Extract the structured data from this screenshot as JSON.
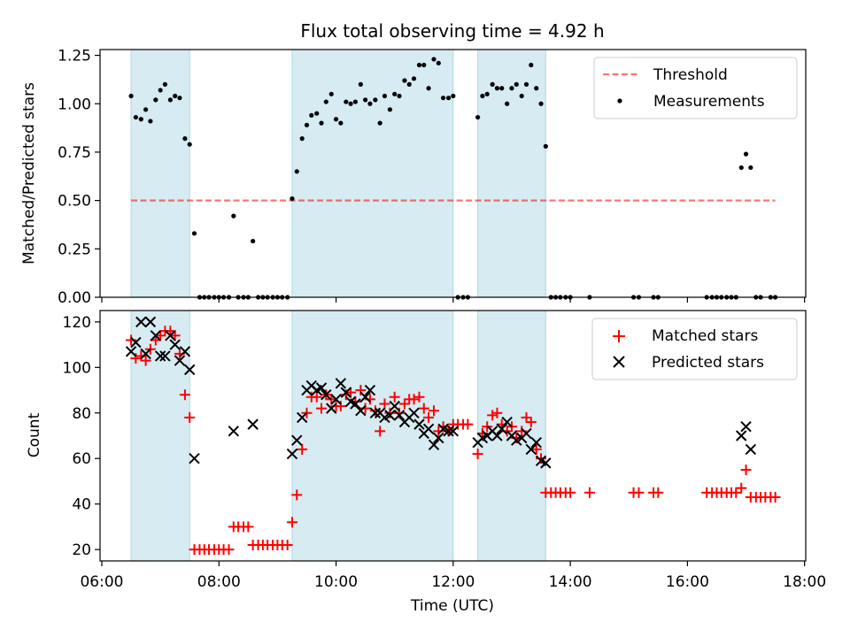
{
  "chart_data": {
    "title": "Flux total observing time = 4.92 h",
    "xlabel": "Time (UTC)",
    "x_ticks": [
      "06:00",
      "08:00",
      "10:00",
      "12:00",
      "14:00",
      "16:00",
      "18:00"
    ],
    "x_tick_hours": [
      6,
      8,
      10,
      12,
      14,
      16,
      18
    ],
    "xlim": [
      5.97,
      18.02
    ],
    "shaded_intervals": [
      [
        6.5,
        7.5
      ],
      [
        9.25,
        12.0
      ],
      [
        12.42,
        13.58
      ]
    ],
    "shade_color": "#add8e6",
    "top": {
      "type": "scatter",
      "ylabel": "Matched/Predicted stars",
      "ylim": [
        0,
        1.28
      ],
      "y_ticks": [
        "0.00",
        "0.25",
        "0.50",
        "0.75",
        "1.00",
        "1.25"
      ],
      "y_tick_values": [
        0,
        0.25,
        0.5,
        0.75,
        1.0,
        1.25
      ],
      "threshold": {
        "name": "Threshold",
        "value": 0.5,
        "x_range": [
          6.5,
          17.5
        ],
        "color": "#ff0000"
      },
      "series_name": "Measurements",
      "points": [
        [
          6.5,
          1.04
        ],
        [
          6.58,
          0.93
        ],
        [
          6.67,
          0.92
        ],
        [
          6.75,
          0.97
        ],
        [
          6.83,
          0.91
        ],
        [
          6.92,
          1.02
        ],
        [
          7.0,
          1.07
        ],
        [
          7.08,
          1.1
        ],
        [
          7.17,
          1.02
        ],
        [
          7.25,
          1.04
        ],
        [
          7.33,
          1.03
        ],
        [
          7.42,
          0.82
        ],
        [
          7.5,
          0.79
        ],
        [
          7.58,
          0.33
        ],
        [
          7.67,
          0.0
        ],
        [
          7.75,
          0.0
        ],
        [
          7.83,
          0.0
        ],
        [
          7.92,
          0.0
        ],
        [
          8.0,
          0.0
        ],
        [
          8.08,
          0.0
        ],
        [
          8.17,
          0.0
        ],
        [
          8.25,
          0.42
        ],
        [
          8.33,
          0.0
        ],
        [
          8.42,
          0.0
        ],
        [
          8.5,
          0.0
        ],
        [
          8.58,
          0.29
        ],
        [
          8.67,
          0.0
        ],
        [
          8.75,
          0.0
        ],
        [
          8.83,
          0.0
        ],
        [
          8.92,
          0.0
        ],
        [
          9.0,
          0.0
        ],
        [
          9.08,
          0.0
        ],
        [
          9.17,
          0.0
        ],
        [
          9.25,
          0.51
        ],
        [
          9.33,
          0.65
        ],
        [
          9.42,
          0.82
        ],
        [
          9.5,
          0.89
        ],
        [
          9.58,
          0.94
        ],
        [
          9.67,
          0.95
        ],
        [
          9.75,
          0.9
        ],
        [
          9.83,
          1.01
        ],
        [
          9.92,
          1.05
        ],
        [
          10.0,
          0.92
        ],
        [
          10.08,
          0.9
        ],
        [
          10.17,
          1.01
        ],
        [
          10.25,
          1.0
        ],
        [
          10.33,
          1.01
        ],
        [
          10.42,
          1.1
        ],
        [
          10.5,
          1.02
        ],
        [
          10.58,
          1.0
        ],
        [
          10.67,
          1.02
        ],
        [
          10.75,
          0.9
        ],
        [
          10.83,
          1.04
        ],
        [
          10.92,
          0.97
        ],
        [
          11.0,
          1.05
        ],
        [
          11.08,
          1.04
        ],
        [
          11.17,
          1.12
        ],
        [
          11.25,
          1.1
        ],
        [
          11.33,
          1.13
        ],
        [
          11.42,
          1.2
        ],
        [
          11.5,
          1.2
        ],
        [
          11.58,
          1.08
        ],
        [
          11.67,
          1.23
        ],
        [
          11.75,
          1.21
        ],
        [
          11.83,
          1.03
        ],
        [
          11.92,
          1.03
        ],
        [
          12.0,
          1.04
        ],
        [
          12.08,
          0.0
        ],
        [
          12.17,
          0.0
        ],
        [
          12.25,
          0.0
        ],
        [
          12.42,
          0.93
        ],
        [
          12.5,
          1.04
        ],
        [
          12.58,
          1.05
        ],
        [
          12.67,
          1.1
        ],
        [
          12.75,
          1.08
        ],
        [
          12.83,
          1.08
        ],
        [
          12.92,
          1.0
        ],
        [
          13.0,
          1.08
        ],
        [
          13.08,
          1.1
        ],
        [
          13.17,
          1.04
        ],
        [
          13.25,
          1.1
        ],
        [
          13.33,
          1.2
        ],
        [
          13.42,
          1.08
        ],
        [
          13.5,
          1.0
        ],
        [
          13.58,
          0.78
        ],
        [
          13.67,
          0.0
        ],
        [
          13.75,
          0.0
        ],
        [
          13.83,
          0.0
        ],
        [
          13.92,
          0.0
        ],
        [
          14.0,
          0.0
        ],
        [
          14.33,
          0.0
        ],
        [
          15.08,
          0.0
        ],
        [
          15.17,
          0.0
        ],
        [
          15.42,
          0.0
        ],
        [
          15.5,
          0.0
        ],
        [
          16.33,
          0.0
        ],
        [
          16.42,
          0.0
        ],
        [
          16.5,
          0.0
        ],
        [
          16.58,
          0.0
        ],
        [
          16.67,
          0.0
        ],
        [
          16.75,
          0.0
        ],
        [
          16.83,
          0.0
        ],
        [
          16.92,
          0.67
        ],
        [
          17.0,
          0.74
        ],
        [
          17.08,
          0.67
        ],
        [
          17.17,
          0.0
        ],
        [
          17.25,
          0.0
        ],
        [
          17.42,
          0.0
        ],
        [
          17.5,
          0.0
        ]
      ]
    },
    "bottom": {
      "type": "scatter",
      "ylabel": "Count",
      "ylim": [
        15,
        125
      ],
      "y_ticks": [
        "20",
        "40",
        "60",
        "80",
        "100",
        "120"
      ],
      "y_tick_values": [
        20,
        40,
        60,
        80,
        100,
        120
      ],
      "series": [
        {
          "name": "Matched stars",
          "marker": "plus",
          "color": "#ff0000",
          "points": [
            [
              6.5,
              112
            ],
            [
              6.58,
              104
            ],
            [
              6.67,
              105
            ],
            [
              6.75,
              103
            ],
            [
              6.83,
              108
            ],
            [
              6.92,
              112
            ],
            [
              7.0,
              114
            ],
            [
              7.08,
              116
            ],
            [
              7.17,
              116
            ],
            [
              7.25,
              114
            ],
            [
              7.33,
              106
            ],
            [
              7.42,
              88
            ],
            [
              7.5,
              78
            ],
            [
              7.58,
              20
            ],
            [
              7.67,
              20
            ],
            [
              7.75,
              20
            ],
            [
              7.83,
              20
            ],
            [
              7.92,
              20
            ],
            [
              8.0,
              20
            ],
            [
              8.08,
              20
            ],
            [
              8.17,
              20
            ],
            [
              8.25,
              30
            ],
            [
              8.33,
              30
            ],
            [
              8.42,
              30
            ],
            [
              8.5,
              30
            ],
            [
              8.58,
              22
            ],
            [
              8.67,
              22
            ],
            [
              8.75,
              22
            ],
            [
              8.83,
              22
            ],
            [
              8.92,
              22
            ],
            [
              9.0,
              22
            ],
            [
              9.08,
              22
            ],
            [
              9.17,
              22
            ],
            [
              9.25,
              32
            ],
            [
              9.33,
              44
            ],
            [
              9.42,
              64
            ],
            [
              9.5,
              80
            ],
            [
              9.58,
              87
            ],
            [
              9.67,
              87
            ],
            [
              9.75,
              82
            ],
            [
              9.83,
              88
            ],
            [
              9.92,
              86
            ],
            [
              10.0,
              83
            ],
            [
              10.08,
              83
            ],
            [
              10.17,
              88
            ],
            [
              10.25,
              89
            ],
            [
              10.33,
              85
            ],
            [
              10.42,
              90
            ],
            [
              10.5,
              82
            ],
            [
              10.58,
              86
            ],
            [
              10.67,
              81
            ],
            [
              10.75,
              72
            ],
            [
              10.83,
              84
            ],
            [
              10.92,
              80
            ],
            [
              11.0,
              87
            ],
            [
              11.08,
              80
            ],
            [
              11.17,
              84
            ],
            [
              11.25,
              86
            ],
            [
              11.33,
              86
            ],
            [
              11.42,
              87
            ],
            [
              11.5,
              82
            ],
            [
              11.58,
              78
            ],
            [
              11.67,
              81
            ],
            [
              11.75,
              72
            ],
            [
              11.83,
              74
            ],
            [
              11.92,
              72
            ],
            [
              12.0,
              75
            ],
            [
              12.08,
              75
            ],
            [
              12.17,
              75
            ],
            [
              12.25,
              75
            ],
            [
              12.42,
              62
            ],
            [
              12.5,
              71
            ],
            [
              12.58,
              74
            ],
            [
              12.67,
              79
            ],
            [
              12.75,
              80
            ],
            [
              12.83,
              75
            ],
            [
              12.92,
              72
            ],
            [
              13.0,
              74
            ],
            [
              13.08,
              69
            ],
            [
              13.17,
              72
            ],
            [
              13.25,
              78
            ],
            [
              13.33,
              76
            ],
            [
              13.42,
              64
            ],
            [
              13.5,
              60
            ],
            [
              13.58,
              45
            ],
            [
              13.67,
              45
            ],
            [
              13.75,
              45
            ],
            [
              13.83,
              45
            ],
            [
              13.92,
              45
            ],
            [
              14.0,
              45
            ],
            [
              14.33,
              45
            ],
            [
              15.08,
              45
            ],
            [
              15.17,
              45
            ],
            [
              15.42,
              45
            ],
            [
              15.5,
              45
            ],
            [
              16.33,
              45
            ],
            [
              16.42,
              45
            ],
            [
              16.5,
              45
            ],
            [
              16.58,
              45
            ],
            [
              16.67,
              45
            ],
            [
              16.75,
              45
            ],
            [
              16.83,
              45
            ],
            [
              16.92,
              47
            ],
            [
              17.0,
              55
            ],
            [
              17.08,
              43
            ],
            [
              17.17,
              43
            ],
            [
              17.25,
              43
            ],
            [
              17.33,
              43
            ],
            [
              17.42,
              43
            ],
            [
              17.5,
              43
            ]
          ]
        },
        {
          "name": "Predicted stars",
          "marker": "x",
          "color": "#000000",
          "points": [
            [
              6.5,
              107
            ],
            [
              6.58,
              111
            ],
            [
              6.67,
              120
            ],
            [
              6.75,
              106
            ],
            [
              6.83,
              120
            ],
            [
              6.92,
              114
            ],
            [
              7.0,
              105
            ],
            [
              7.08,
              105
            ],
            [
              7.17,
              114
            ],
            [
              7.25,
              110
            ],
            [
              7.33,
              103
            ],
            [
              7.42,
              107
            ],
            [
              7.5,
              99
            ],
            [
              7.58,
              60
            ],
            [
              8.25,
              72
            ],
            [
              8.58,
              75
            ],
            [
              9.25,
              62
            ],
            [
              9.33,
              68
            ],
            [
              9.42,
              78
            ],
            [
              9.5,
              90
            ],
            [
              9.58,
              92
            ],
            [
              9.67,
              90
            ],
            [
              9.75,
              91
            ],
            [
              9.83,
              88
            ],
            [
              9.92,
              82
            ],
            [
              10.0,
              86
            ],
            [
              10.08,
              93
            ],
            [
              10.17,
              89
            ],
            [
              10.25,
              85
            ],
            [
              10.33,
              84
            ],
            [
              10.42,
              81
            ],
            [
              10.5,
              87
            ],
            [
              10.58,
              90
            ],
            [
              10.67,
              80
            ],
            [
              10.75,
              80
            ],
            [
              10.83,
              78
            ],
            [
              10.92,
              79
            ],
            [
              11.0,
              83
            ],
            [
              11.08,
              79
            ],
            [
              11.17,
              76
            ],
            [
              11.25,
              78
            ],
            [
              11.33,
              80
            ],
            [
              11.42,
              75
            ],
            [
              11.5,
              71
            ],
            [
              11.58,
              73
            ],
            [
              11.67,
              66
            ],
            [
              11.75,
              69
            ],
            [
              11.83,
              73
            ],
            [
              11.92,
              72
            ],
            [
              12.0,
              72
            ],
            [
              12.42,
              67
            ],
            [
              12.5,
              69
            ],
            [
              12.58,
              70
            ],
            [
              12.67,
              72
            ],
            [
              12.75,
              70
            ],
            [
              12.83,
              73
            ],
            [
              12.92,
              76
            ],
            [
              13.0,
              70
            ],
            [
              13.08,
              68
            ],
            [
              13.17,
              69
            ],
            [
              13.25,
              71
            ],
            [
              13.33,
              64
            ],
            [
              13.42,
              67
            ],
            [
              13.5,
              59
            ],
            [
              13.58,
              58
            ],
            [
              16.92,
              70
            ],
            [
              17.0,
              74
            ],
            [
              17.08,
              64
            ]
          ]
        }
      ]
    }
  }
}
